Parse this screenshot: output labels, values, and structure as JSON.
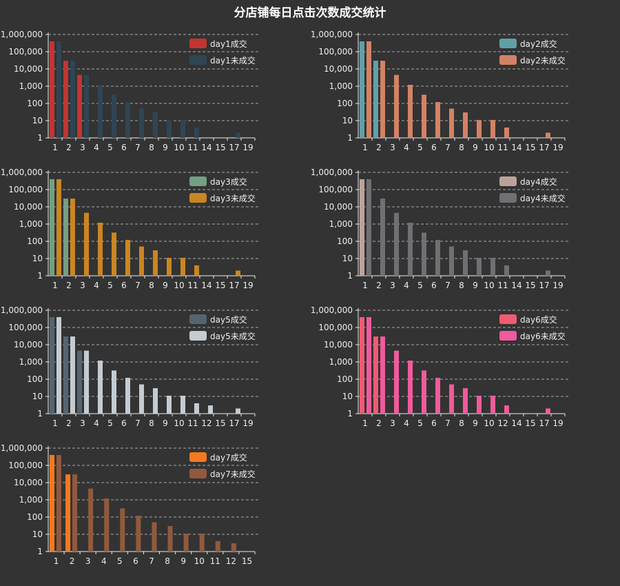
{
  "title": "分店铺每日点击次数成交统计",
  "chart_data": [
    {
      "type": "bar",
      "yscale": "log",
      "ylim": [
        1,
        1000000
      ],
      "yticks": [
        "1",
        "10",
        "100",
        "1,000",
        "10,000",
        "100,000",
        "1,000,000"
      ],
      "grid": true,
      "legend_position": "top-right",
      "categories": [
        "1",
        "2",
        "3",
        "4",
        "5",
        "6",
        "7",
        "8",
        "9",
        "10",
        "11",
        "14",
        "15",
        "17",
        "19"
      ],
      "series": [
        {
          "name": "day1成交",
          "color": "#c23531",
          "values": [
            400000,
            30000,
            4500,
            null,
            null,
            null,
            null,
            null,
            null,
            null,
            null,
            null,
            null,
            null,
            null
          ]
        },
        {
          "name": "day1未成交",
          "color": "#2f4554",
          "values": [
            400000,
            30000,
            4500,
            1200,
            320,
            120,
            50,
            30,
            11,
            11,
            4,
            null,
            null,
            2,
            null
          ]
        }
      ]
    },
    {
      "type": "bar",
      "yscale": "log",
      "ylim": [
        1,
        1000000
      ],
      "yticks": [
        "1",
        "10",
        "100",
        "1,000",
        "10,000",
        "100,000",
        "1,000,000"
      ],
      "grid": true,
      "legend_position": "top-right",
      "categories": [
        "1",
        "2",
        "3",
        "4",
        "5",
        "6",
        "7",
        "8",
        "9",
        "10",
        "11",
        "14",
        "15",
        "17",
        "19"
      ],
      "series": [
        {
          "name": "day2成交",
          "color": "#61a0a8",
          "values": [
            400000,
            30000,
            null,
            null,
            null,
            null,
            null,
            null,
            null,
            null,
            null,
            null,
            null,
            null,
            null
          ]
        },
        {
          "name": "day2未成交",
          "color": "#d48265",
          "values": [
            400000,
            30000,
            4500,
            1200,
            320,
            120,
            50,
            30,
            11,
            11,
            4,
            null,
            null,
            2,
            null
          ]
        }
      ]
    },
    {
      "type": "bar",
      "yscale": "log",
      "ylim": [
        1,
        1000000
      ],
      "yticks": [
        "1",
        "10",
        "100",
        "1,000",
        "10,000",
        "100,000",
        "1,000,000"
      ],
      "grid": true,
      "legend_position": "top-right",
      "categories": [
        "1",
        "2",
        "3",
        "4",
        "5",
        "6",
        "7",
        "8",
        "9",
        "10",
        "11",
        "14",
        "15",
        "17",
        "19"
      ],
      "series": [
        {
          "name": "day3成交",
          "color": "#749f83",
          "values": [
            400000,
            30000,
            null,
            null,
            null,
            null,
            null,
            null,
            null,
            null,
            null,
            null,
            null,
            null,
            null
          ]
        },
        {
          "name": "day3未成交",
          "color": "#ca8622",
          "values": [
            400000,
            30000,
            4500,
            1200,
            320,
            120,
            50,
            30,
            11,
            11,
            4,
            null,
            null,
            2,
            null
          ]
        }
      ]
    },
    {
      "type": "bar",
      "yscale": "log",
      "ylim": [
        1,
        1000000
      ],
      "yticks": [
        "1",
        "10",
        "100",
        "1,000",
        "10,000",
        "100,000",
        "1,000,000"
      ],
      "grid": true,
      "legend_position": "top-right",
      "categories": [
        "1",
        "2",
        "3",
        "4",
        "5",
        "6",
        "7",
        "8",
        "9",
        "10",
        "11",
        "14",
        "15",
        "17",
        "19"
      ],
      "series": [
        {
          "name": "day4成交",
          "color": "#bda29a",
          "values": [
            400000,
            null,
            null,
            null,
            null,
            null,
            null,
            null,
            null,
            null,
            null,
            null,
            null,
            null,
            null
          ]
        },
        {
          "name": "day4未成交",
          "color": "#6e7074",
          "values": [
            400000,
            30000,
            4500,
            1200,
            320,
            120,
            50,
            30,
            11,
            11,
            4,
            null,
            null,
            2,
            null
          ]
        }
      ]
    },
    {
      "type": "bar",
      "yscale": "log",
      "ylim": [
        1,
        1000000
      ],
      "yticks": [
        "1",
        "10",
        "100",
        "1,000",
        "10,000",
        "100,000",
        "1,000,000"
      ],
      "grid": true,
      "legend_position": "top-right",
      "categories": [
        "1",
        "2",
        "3",
        "4",
        "5",
        "6",
        "7",
        "8",
        "9",
        "10",
        "11",
        "12",
        "15",
        "17",
        "19"
      ],
      "series": [
        {
          "name": "day5成交",
          "color": "#546570",
          "values": [
            400000,
            30000,
            4500,
            null,
            null,
            null,
            null,
            null,
            null,
            null,
            null,
            null,
            null,
            null,
            null
          ]
        },
        {
          "name": "day5未成交",
          "color": "#c4ccd3",
          "values": [
            400000,
            30000,
            4500,
            1200,
            320,
            120,
            50,
            30,
            11,
            11,
            4,
            3,
            null,
            2,
            null
          ]
        }
      ]
    },
    {
      "type": "bar",
      "yscale": "log",
      "ylim": [
        1,
        1000000
      ],
      "yticks": [
        "1",
        "10",
        "100",
        "1,000",
        "10,000",
        "100,000",
        "1,000,000"
      ],
      "grid": true,
      "legend_position": "top-right",
      "categories": [
        "1",
        "2",
        "3",
        "4",
        "5",
        "6",
        "7",
        "8",
        "9",
        "10",
        "12",
        "14",
        "15",
        "17",
        "19"
      ],
      "series": [
        {
          "name": "day6成交",
          "color": "#f05b72",
          "values": [
            400000,
            30000,
            null,
            null,
            null,
            null,
            null,
            null,
            null,
            null,
            null,
            null,
            null,
            null,
            null
          ]
        },
        {
          "name": "day6未成交",
          "color": "#ef5b9c",
          "values": [
            400000,
            30000,
            4500,
            1200,
            320,
            120,
            50,
            30,
            11,
            11,
            3,
            null,
            null,
            2,
            null
          ]
        }
      ]
    },
    {
      "type": "bar",
      "yscale": "log",
      "ylim": [
        1,
        1000000
      ],
      "yticks": [
        "1",
        "10",
        "100",
        "1,000",
        "10,000",
        "100,000",
        "1,000,000"
      ],
      "grid": true,
      "legend_position": "top-right",
      "categories": [
        "1",
        "2",
        "3",
        "4",
        "5",
        "6",
        "7",
        "8",
        "9",
        "10",
        "11",
        "12",
        "15"
      ],
      "series": [
        {
          "name": "day7成交",
          "color": "#f47920",
          "values": [
            400000,
            30000,
            null,
            null,
            null,
            null,
            null,
            null,
            null,
            null,
            null,
            null,
            null
          ]
        },
        {
          "name": "day7未成交",
          "color": "#905a3d",
          "values": [
            400000,
            30000,
            4500,
            1200,
            320,
            120,
            50,
            30,
            11,
            11,
            4,
            3,
            null
          ]
        }
      ]
    }
  ]
}
